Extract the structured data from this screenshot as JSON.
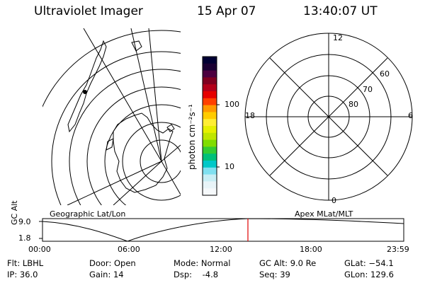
{
  "header": {
    "instrument": "Ultraviolet Imager",
    "date": "15 Apr 07",
    "time": "13:40:07 UT"
  },
  "colorbar": {
    "unit_label": "photon cm⁻²s⁻¹",
    "ticks": [
      "100",
      "10"
    ],
    "colors": [
      "#000033",
      "#1a0033",
      "#4d0040",
      "#800020",
      "#b3001a",
      "#e60000",
      "#ff4000",
      "#ff9900",
      "#ffcc00",
      "#ffee33",
      "#e6f000",
      "#bfe600",
      "#80dd00",
      "#33cc33",
      "#00c07a",
      "#00c8c8",
      "#80e0f0",
      "#c8eef5",
      "#e8f4f8",
      "#f6f9fb"
    ]
  },
  "map_labels": {
    "left": "Geographic Lat/Lon",
    "right": "Apex MLat/MLT"
  },
  "polar_plot": {
    "mlt_labels": {
      "top": "12",
      "left": "18",
      "right": "6",
      "bottom": "0"
    },
    "lat_labels": [
      "60",
      "70",
      "80"
    ]
  },
  "altitude_plot": {
    "axis_label": "GC Alt",
    "y_ticks": [
      "9.0",
      "1.8"
    ],
    "x_ticks": [
      "00:00",
      "06:00",
      "12:00",
      "18:00",
      "23:59"
    ]
  },
  "status": {
    "flt": "Flt: LBHL",
    "ip": "IP: 36.0",
    "door": "Door: Open",
    "gain": "Gain: 14",
    "mode": "Mode: Normal",
    "dsp": "Dsp:    -4.8",
    "gcalt": "GC Alt: 9.0 Re",
    "seq": "Seq: 39",
    "glat": "GLat: −54.1",
    "glon": "GLon: 129.6"
  }
}
